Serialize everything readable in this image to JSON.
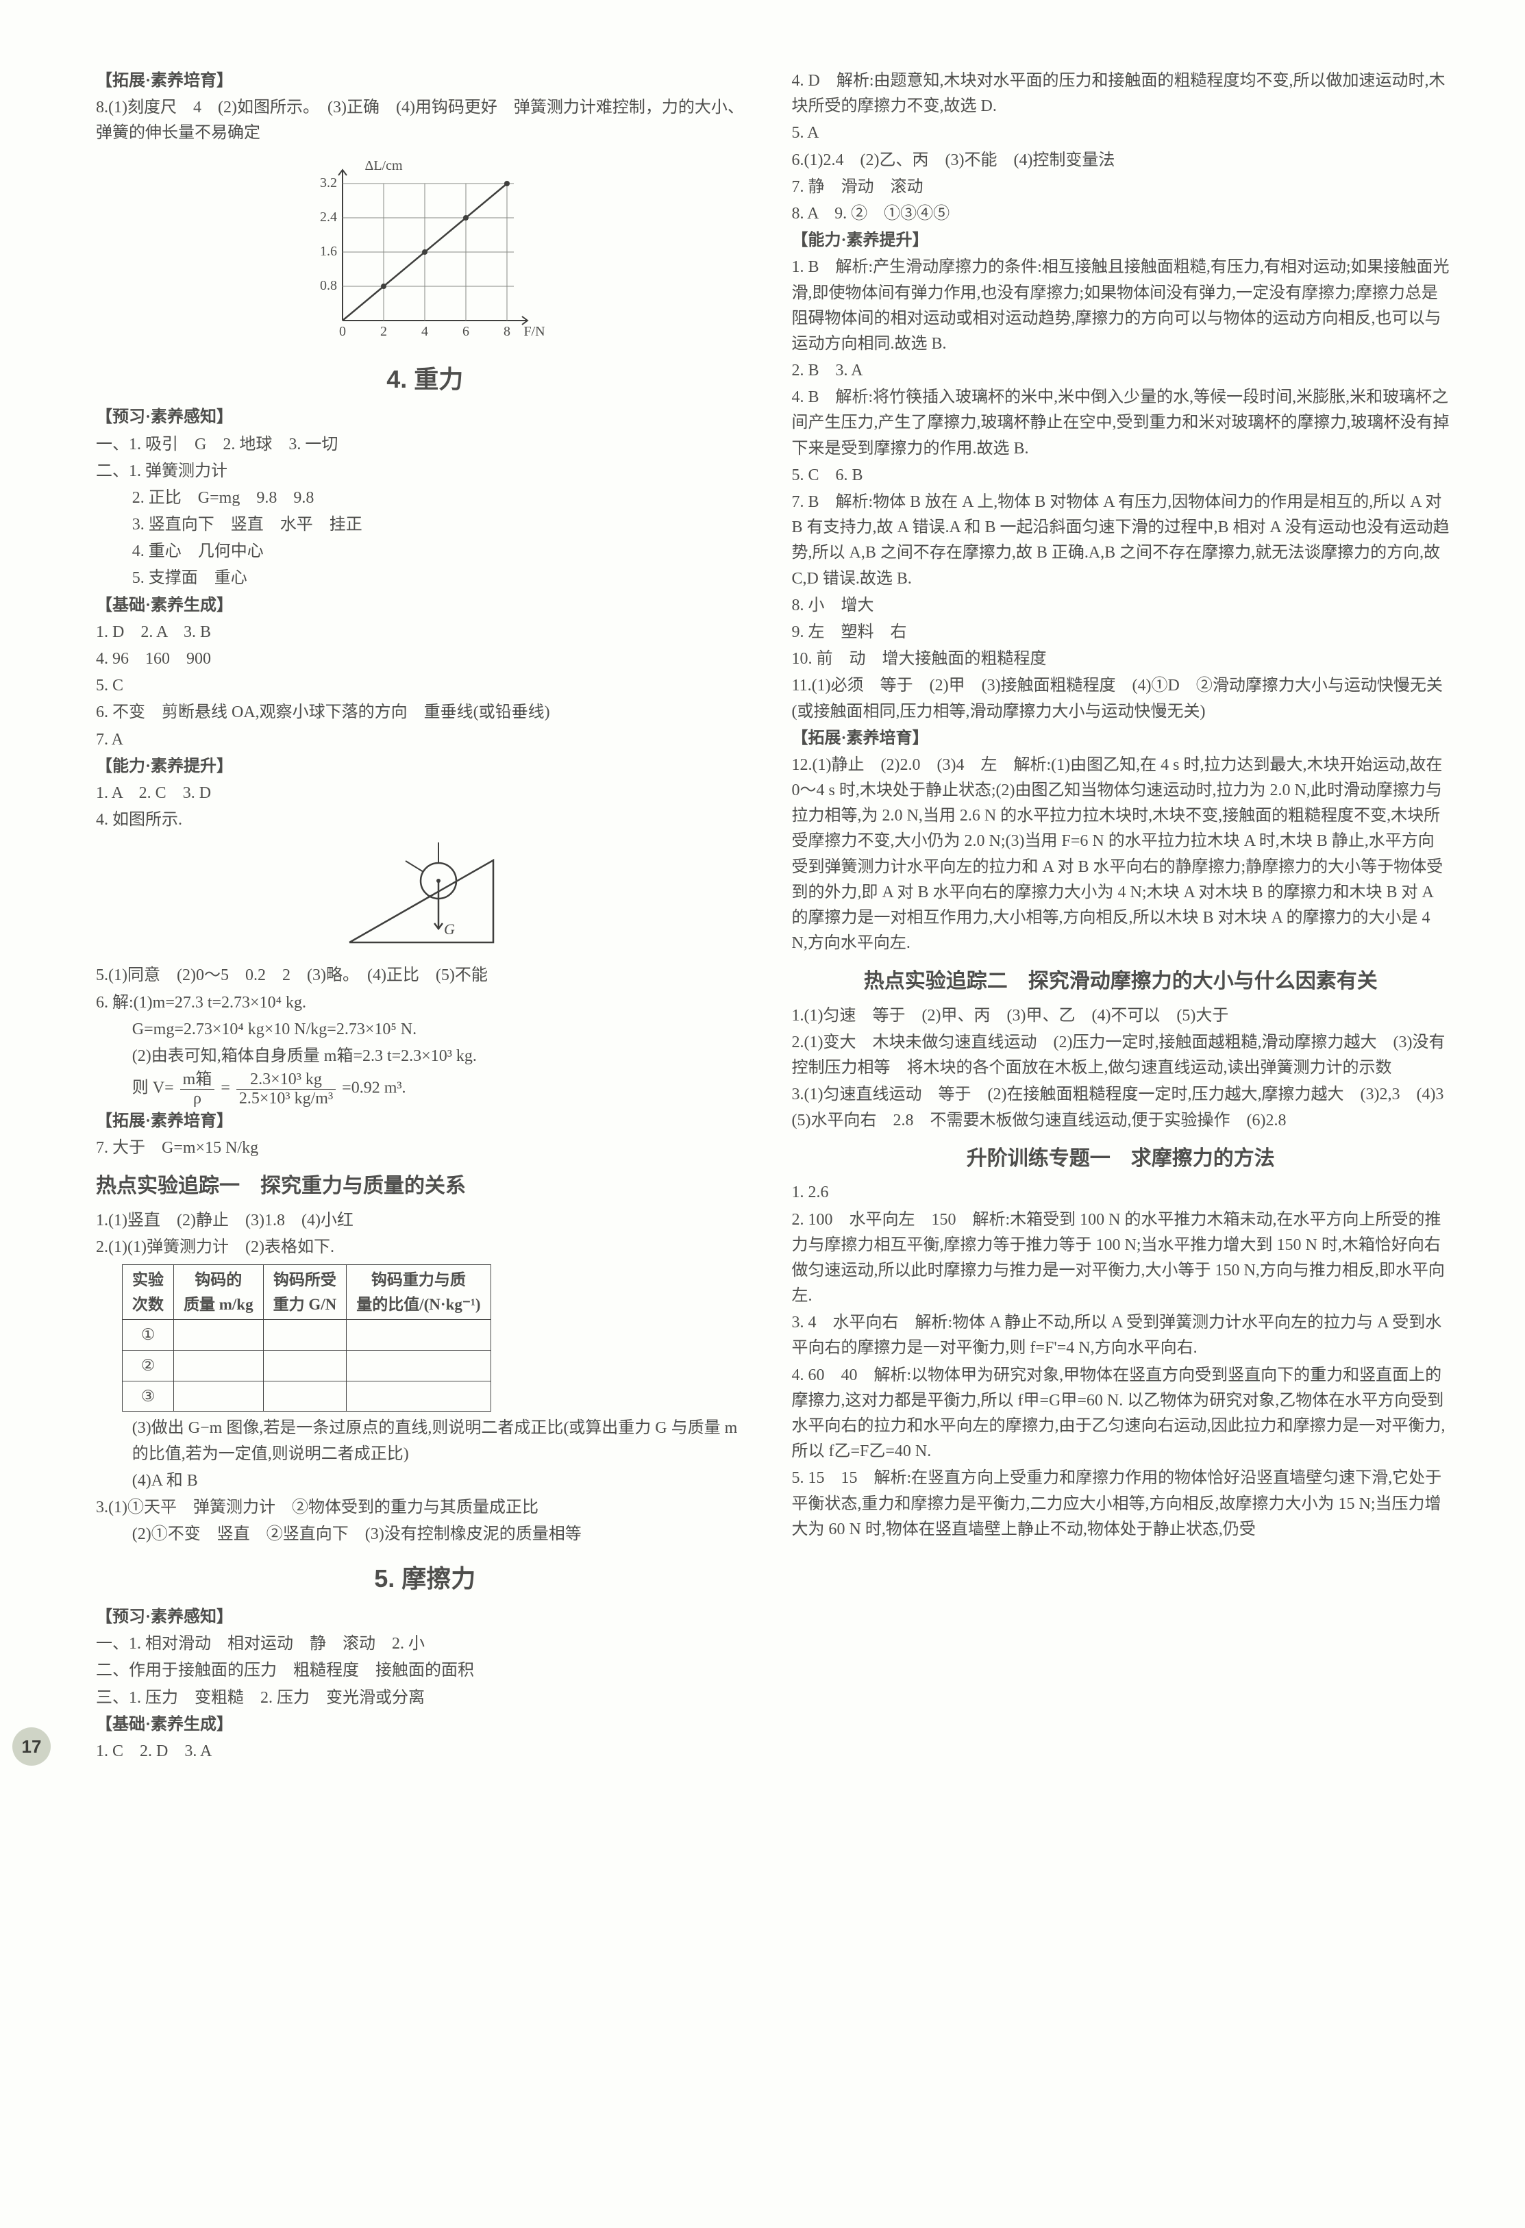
{
  "page_number": "17",
  "col_left": {
    "section_top": "【拓展·素养培育】",
    "line8": "8.(1)刻度尺　4　(2)如图所示。　(3)正确　(4)用钩码更好　弹簧测力计难控制，力的大小、弹簧的伸长量不易确定",
    "chart": {
      "type": "line",
      "x_label": "F/N",
      "y_label": "ΔL/cm",
      "x_ticks": [
        "0",
        "2",
        "4",
        "6",
        "8"
      ],
      "y_ticks": [
        "0",
        "0.8",
        "1.6",
        "2.4",
        "3.2"
      ],
      "xlim": [
        0,
        9
      ],
      "ylim": [
        0,
        3.6
      ],
      "points": [
        [
          0,
          0
        ],
        [
          2,
          0.8
        ],
        [
          4,
          1.6
        ],
        [
          6,
          2.4
        ],
        [
          8,
          3.2
        ]
      ],
      "line_color": "#3f3f3d",
      "grid_color": "#888a85",
      "marker": "circle",
      "marker_size": 5
    },
    "title4": "4. 重力",
    "preview_hdr": "【预习·素养感知】",
    "prev": [
      "一、1. 吸引　G　2. 地球　3. 一切",
      "二、1. 弹簧测力计",
      "2. 正比　G=mg　9.8　9.8",
      "3. 竖直向下　竖直　水平　挂正",
      "4. 重心　几何中心",
      "5. 支撑面　重心"
    ],
    "basic_hdr": "【基础·素养生成】",
    "basic": [
      "1. D　2. A　3. B",
      "4. 96　160　900",
      "5. C",
      "6. 不变　剪断悬线 OA,观察小球下落的方向　重垂线(或铅垂线)",
      "7. A"
    ],
    "ability_hdr": "【能力·素养提升】",
    "ability": [
      "1. A　2. C　3. D",
      "4. 如图所示."
    ],
    "diagram_label": "G",
    "line5": "5.(1)同意　(2)0～5　0.2　2　(3)略。　(4)正比　(5)不能",
    "line6": [
      "6. 解:(1)m=27.3 t=2.73×10⁴ kg.",
      "G=mg=2.73×10⁴ kg×10 N/kg=2.73×10⁵ N.",
      "(2)由表可知,箱体自身质量 m箱=2.3 t=2.3×10³ kg."
    ],
    "vol_expr": {
      "prefix": "则 V=",
      "num": "m箱",
      "den1": "ρ",
      "eq": "=",
      "num2": "2.3×10³ kg",
      "den2": "2.5×10³ kg/m³",
      "suffix": "=0.92 m³."
    },
    "expand_hdr": "【拓展·素养培育】",
    "line7": "7. 大于　G=m×15 N/kg",
    "hot1_title": "热点实验追踪一　探究重力与质量的关系",
    "hot1": [
      "1.(1)竖直　(2)静止　(3)1.8　(4)小红",
      "2.(1)(1)弹簧测力计　(2)表格如下."
    ],
    "table": {
      "headers": [
        "实验\n次数",
        "钩码的\n质量 m/kg",
        "钩码所受\n重力 G/N",
        "钩码重力与质\n量的比值/(N·kg⁻¹)"
      ],
      "rows": [
        [
          "①",
          "",
          "",
          ""
        ],
        [
          "②",
          "",
          "",
          ""
        ],
        [
          "③",
          "",
          "",
          ""
        ]
      ]
    },
    "hot1_after": [
      "(3)做出 G−m 图像,若是一条过原点的直线,则说明二者成正比(或算出重力 G 与质量 m 的比值,若为一定值,则说明二者成正比)",
      "(4)A 和 B",
      "3.(1)①天平　弹簧测力计　②物体受到的重力与其质量成正比",
      "(2)①不变　竖直　②竖直向下　(3)没有控制橡皮泥的质量相等"
    ],
    "title5": "5. 摩擦力",
    "preview5_hdr": "【预习·素养感知】",
    "preview5": [
      "一、1. 相对滑动　相对运动　静　滚动　2. 小",
      "二、作用于接触面的压力　粗糙程度　接触面的面积",
      "三、1. 压力　变粗糙　2. 压力　变光滑或分离"
    ],
    "basic5_hdr": "【基础·素养生成】",
    "basic5": "1. C　2. D　3. A"
  },
  "col_right": {
    "top": [
      "4. D　解析:由题意知,木块对水平面的压力和接触面的粗糙程度均不变,所以做加速运动时,木块所受的摩擦力不变,故选 D.",
      "5. A",
      "6.(1)2.4　(2)乙、丙　(3)不能　(4)控制变量法",
      "7. 静　滑动　滚动",
      "8. A　9. ②　①③④⑤"
    ],
    "ability_hdr": "【能力·素养提升】",
    "ability": [
      "1. B　解析:产生滑动摩擦力的条件:相互接触且接触面粗糙,有压力,有相对运动;如果接触面光滑,即使物体间有弹力作用,也没有摩擦力;如果物体间没有弹力,一定没有摩擦力;摩擦力总是阻碍物体间的相对运动或相对运动趋势,摩擦力的方向可以与物体的运动方向相反,也可以与运动方向相同.故选 B.",
      "2. B　3. A",
      "4. B　解析:将竹筷插入玻璃杯的米中,米中倒入少量的水,等候一段时间,米膨胀,米和玻璃杯之间产生压力,产生了摩擦力,玻璃杯静止在空中,受到重力和米对玻璃杯的摩擦力,玻璃杯没有掉下来是受到摩擦力的作用.故选 B.",
      "5. C　6. B",
      "7. B　解析:物体 B 放在 A 上,物体 B 对物体 A 有压力,因物体间力的作用是相互的,所以 A 对 B 有支持力,故 A 错误.A 和 B 一起沿斜面匀速下滑的过程中,B 相对 A 没有运动也没有运动趋势,所以 A,B 之间不存在摩擦力,故 B 正确.A,B 之间不存在摩擦力,就无法谈摩擦力的方向,故 C,D 错误.故选 B.",
      "8. 小　增大",
      "9. 左　塑料　右",
      "10. 前　动　增大接触面的粗糙程度",
      "11.(1)必须　等于　(2)甲　(3)接触面粗糙程度　(4)①D　②滑动摩擦力大小与运动快慢无关(或接触面相同,压力相等,滑动摩擦力大小与运动快慢无关)"
    ],
    "expand_hdr": "【拓展·素养培育】",
    "expand": [
      "12.(1)静止　(2)2.0　(3)4　左　解析:(1)由图乙知,在 4 s 时,拉力达到最大,木块开始运动,故在 0～4 s 时,木块处于静止状态;(2)由图乙知当物体匀速运动时,拉力为 2.0 N,此时滑动摩擦力与拉力相等,为 2.0 N,当用 2.6 N 的水平拉力拉木块时,木块不变,接触面的粗糙程度不变,木块所受摩擦力不变,大小仍为 2.0 N;(3)当用 F=6 N 的水平拉力拉木块 A 时,木块 B 静止,水平方向受到弹簧测力计水平向左的拉力和 A 对 B 水平向右的静摩擦力;静摩擦力的大小等于物体受到的外力,即 A 对 B 水平向右的摩擦力大小为 4 N;木块 A 对木块 B 的摩擦力和木块 B 对 A 的摩擦力是一对相互作用力,大小相等,方向相反,所以木块 B 对木块 A 的摩擦力的大小是 4 N,方向水平向左."
    ],
    "hot2_title": "热点实验追踪二　探究滑动摩擦力的大小与什么因素有关",
    "hot2": [
      "1.(1)匀速　等于　(2)甲、丙　(3)甲、乙　(4)不可以　(5)大于",
      "2.(1)变大　木块未做匀速直线运动　(2)压力一定时,接触面越粗糙,滑动摩擦力越大　(3)没有控制压力相等　将木块的各个面放在木板上,做匀速直线运动,读出弹簧测力计的示数",
      "3.(1)匀速直线运动　等于　(2)在接触面粗糙程度一定时,压力越大,摩擦力越大　(3)2,3　(4)3　(5)水平向右　2.8　不需要木板做匀速直线运动,便于实验操作　(6)2.8"
    ],
    "lift_title": "升阶训练专题一　求摩擦力的方法",
    "lift": [
      "1. 2.6",
      "2. 100　水平向左　150　解析:木箱受到 100 N 的水平推力木箱未动,在水平方向上所受的推力与摩擦力相互平衡,摩擦力等于推力等于 100 N;当水平推力增大到 150 N 时,木箱恰好向右做匀速运动,所以此时摩擦力与推力是一对平衡力,大小等于 150 N,方向与推力相反,即水平向左.",
      "3. 4　水平向右　解析:物体 A 静止不动,所以 A 受到弹簧测力计水平向左的拉力与 A 受到水平向右的摩擦力是一对平衡力,则 f=F'=4 N,方向水平向右.",
      "4. 60　40　解析:以物体甲为研究对象,甲物体在竖直方向受到竖直向下的重力和竖直面上的摩擦力,这对力都是平衡力,所以 f甲=G甲=60 N. 以乙物体为研究对象,乙物体在水平方向受到水平向右的拉力和水平向左的摩擦力,由于乙匀速向右运动,因此拉力和摩擦力是一对平衡力,所以 f乙=F乙=40 N.",
      "5. 15　15　解析:在竖直方向上受重力和摩擦力作用的物体恰好沿竖直墙壁匀速下滑,它处于平衡状态,重力和摩擦力是平衡力,二力应大小相等,方向相反,故摩擦力大小为 15 N;当压力增大为 60 N 时,物体在竖直墙壁上静止不动,物体处于静止状态,仍受"
    ]
  }
}
